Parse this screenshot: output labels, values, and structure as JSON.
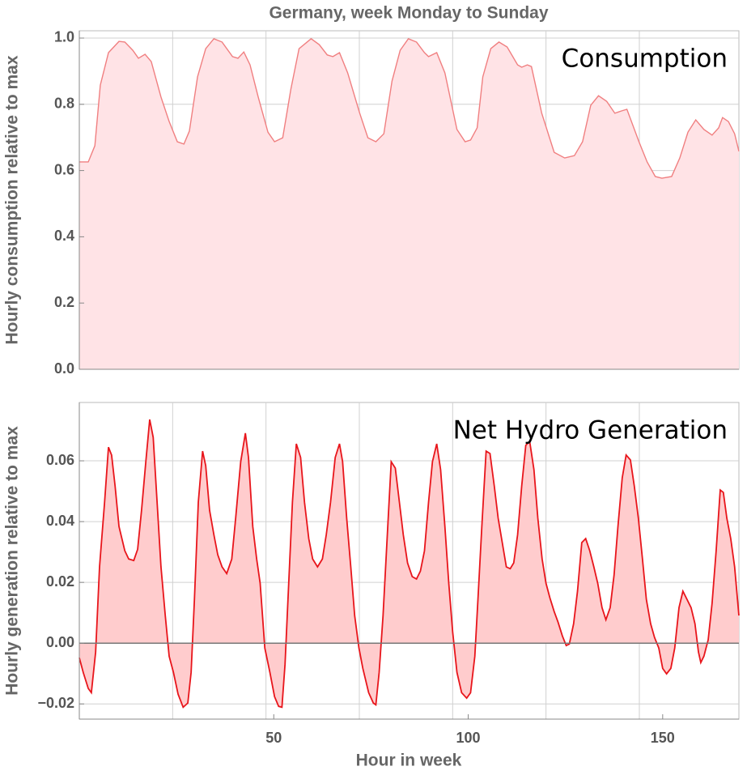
{
  "chart_data": [
    {
      "type": "area",
      "title": "Germany, week Monday to Sunday",
      "ylabel": "Hourly consumption relative to max",
      "annotation": "Consumption",
      "color": "#f07f80",
      "fill": "#ffe3e6",
      "grid": true,
      "xlim": [
        0,
        169.6
      ],
      "xgrid": [
        24,
        48,
        72,
        96,
        120,
        144
      ],
      "ylim": [
        0,
        1.022
      ],
      "yticks": [
        {
          "value": 0,
          "label": "0.0"
        },
        0.2,
        0.4,
        0.6,
        0.8,
        {
          "value": 1,
          "label": "1.0"
        }
      ],
      "x": [
        0,
        2.3,
        4.0,
        5.4,
        7.5,
        10.2,
        11.7,
        13.75,
        15.2,
        16.9,
        18.5,
        21.0,
        23.1,
        25.2,
        26.9,
        28.3,
        30.4,
        32.5,
        34.6,
        36.7,
        39.4,
        40.8,
        42.3,
        43.9,
        46.0,
        48.5,
        50.2,
        52.3,
        54.4,
        56.5,
        59.6,
        61.7,
        63.75,
        65.2,
        66.9,
        69.0,
        72.1,
        74.2,
        76.25,
        78.3,
        80.4,
        82.5,
        84.6,
        86.7,
        88.75,
        89.8,
        91.9,
        94.0,
        97.1,
        99.2,
        100.6,
        102.3,
        103.75,
        105.8,
        107.9,
        110.0,
        112.7,
        113.75,
        115.2,
        116.25,
        118.9,
        122.1,
        124.8,
        127.3,
        129.4,
        131.5,
        133.5,
        135.6,
        137.7,
        139.4,
        140.8,
        143.9,
        146.0,
        148.1,
        149.8,
        152.3,
        154.4,
        156.5,
        158.5,
        160.6,
        162.7,
        164.4,
        165.4,
        166.9,
        168.5,
        169.6
      ],
      "values": [
        0.626,
        0.626,
        0.675,
        0.858,
        0.956,
        0.99,
        0.988,
        0.963,
        0.939,
        0.951,
        0.929,
        0.822,
        0.748,
        0.687,
        0.68,
        0.719,
        0.883,
        0.968,
        0.998,
        0.988,
        0.944,
        0.939,
        0.958,
        0.919,
        0.822,
        0.716,
        0.687,
        0.699,
        0.846,
        0.968,
        0.998,
        0.98,
        0.949,
        0.944,
        0.956,
        0.895,
        0.773,
        0.699,
        0.687,
        0.711,
        0.87,
        0.963,
        0.998,
        0.988,
        0.956,
        0.944,
        0.956,
        0.895,
        0.724,
        0.687,
        0.692,
        0.729,
        0.883,
        0.968,
        0.988,
        0.973,
        0.919,
        0.912,
        0.919,
        0.914,
        0.773,
        0.655,
        0.638,
        0.645,
        0.687,
        0.797,
        0.826,
        0.809,
        0.773,
        0.78,
        0.785,
        0.687,
        0.626,
        0.582,
        0.577,
        0.582,
        0.638,
        0.716,
        0.753,
        0.724,
        0.707,
        0.729,
        0.76,
        0.748,
        0.711,
        0.658
      ]
    },
    {
      "type": "area",
      "xlabel": "Hour in week",
      "ylabel": "Hourly generation relative to max",
      "annotation": "Net Hydro Generation",
      "color": "#e8151b",
      "fill": "#ffcccd",
      "grid": true,
      "zero_line": true,
      "xlim": [
        0,
        169.6
      ],
      "xticks": [
        50,
        100,
        150
      ],
      "xgrid": [
        24,
        48,
        72,
        96,
        120,
        144
      ],
      "ylim": [
        -0.025,
        0.0792
      ],
      "yticks": [
        {
          "value": -0.02,
          "label": "−0.02"
        },
        {
          "value": 0,
          "label": "0.00"
        },
        0.02,
        0.04,
        0.06
      ],
      "x": [
        0,
        1.0,
        2.3,
        3.1,
        4.2,
        5.2,
        6.5,
        7.5,
        8.3,
        9.2,
        10.2,
        11.7,
        12.7,
        14.0,
        15.0,
        16.0,
        17.1,
        18.1,
        19.0,
        20.0,
        21.0,
        22.1,
        23.1,
        24.2,
        25.4,
        26.7,
        27.9,
        28.75,
        29.6,
        30.6,
        31.7,
        32.5,
        33.5,
        34.6,
        35.6,
        36.7,
        37.9,
        39.2,
        40.2,
        41.5,
        42.7,
        43.5,
        44.6,
        45.6,
        46.5,
        47.7,
        49.0,
        50.2,
        51.25,
        52.1,
        52.9,
        53.75,
        54.8,
        55.8,
        56.9,
        57.9,
        59.0,
        60.0,
        61.25,
        62.5,
        63.5,
        64.6,
        65.8,
        66.9,
        67.7,
        68.75,
        69.8,
        70.8,
        71.9,
        72.9,
        74.4,
        75.6,
        76.25,
        77.1,
        78.1,
        79.2,
        80.2,
        81.25,
        82.3,
        83.3,
        84.4,
        85.6,
        86.7,
        87.7,
        88.75,
        89.8,
        90.8,
        91.9,
        92.9,
        94.0,
        95.0,
        96.0,
        97.1,
        98.3,
        99.6,
        100.6,
        101.7,
        102.5,
        103.5,
        104.6,
        105.6,
        106.7,
        107.7,
        108.75,
        109.8,
        110.8,
        111.7,
        112.7,
        113.75,
        114.8,
        115.8,
        116.9,
        117.9,
        119.0,
        120.0,
        121.0,
        122.1,
        123.1,
        124.2,
        125.2,
        126.0,
        127.1,
        128.1,
        129.2,
        130.2,
        131.25,
        132.3,
        133.3,
        134.4,
        135.4,
        136.5,
        137.5,
        138.5,
        139.6,
        140.6,
        141.7,
        142.7,
        143.75,
        144.8,
        145.8,
        146.9,
        147.9,
        149.0,
        150.0,
        151.0,
        152.1,
        153.1,
        154.2,
        155.2,
        156.25,
        157.3,
        158.3,
        159.2,
        159.8,
        160.6,
        161.7,
        162.7,
        163.75,
        164.8,
        165.6,
        166.5,
        167.5,
        168.5,
        169.6
      ],
      "values": [
        -0.0048,
        -0.0096,
        -0.0149,
        -0.0163,
        -0.0029,
        0.0251,
        0.0464,
        0.0645,
        0.0619,
        0.0517,
        0.0384,
        0.0304,
        0.0277,
        0.0272,
        0.0309,
        0.0437,
        0.0597,
        0.0736,
        0.0677,
        0.0464,
        0.0251,
        0.0091,
        -0.0043,
        -0.0096,
        -0.0168,
        -0.0211,
        -0.0197,
        -0.0096,
        0.0144,
        0.0464,
        0.0632,
        0.0584,
        0.0437,
        0.0357,
        0.0291,
        0.0251,
        0.0229,
        0.0277,
        0.0411,
        0.0597,
        0.0691,
        0.0611,
        0.0384,
        0.0277,
        0.0197,
        -0.0016,
        -0.0096,
        -0.0176,
        -0.0208,
        -0.0211,
        -0.0069,
        0.0171,
        0.0464,
        0.0656,
        0.0611,
        0.0464,
        0.0344,
        0.0277,
        0.0251,
        0.0277,
        0.0357,
        0.0464,
        0.0611,
        0.0656,
        0.0597,
        0.0411,
        0.0251,
        0.0091,
        -0.0016,
        -0.0083,
        -0.0163,
        -0.0197,
        -0.0203,
        -0.0096,
        0.0091,
        0.0357,
        0.0597,
        0.0576,
        0.0464,
        0.0357,
        0.0264,
        0.0219,
        0.0211,
        0.0237,
        0.0304,
        0.0464,
        0.0597,
        0.0656,
        0.0571,
        0.0384,
        0.0197,
        0.0037,
        -0.0096,
        -0.0163,
        -0.0181,
        -0.0163,
        -0.0043,
        0.0144,
        0.0384,
        0.0632,
        0.0624,
        0.0517,
        0.0411,
        0.0331,
        0.0251,
        0.0245,
        0.0264,
        0.0357,
        0.0517,
        0.0651,
        0.0664,
        0.0571,
        0.0411,
        0.0277,
        0.0197,
        0.0149,
        0.0104,
        0.0069,
        0.0024,
        -0.0008,
        -0.0003,
        0.0064,
        0.0171,
        0.0331,
        0.0344,
        0.0304,
        0.0251,
        0.0197,
        0.0117,
        0.0077,
        0.0117,
        0.0224,
        0.0384,
        0.0544,
        0.0619,
        0.0603,
        0.0517,
        0.0411,
        0.0277,
        0.0144,
        0.0064,
        0.0019,
        -0.0016,
        -0.0083,
        -0.0101,
        -0.0083,
        -0.0016,
        0.0117,
        0.0171,
        0.0144,
        0.0117,
        0.0064,
        -0.0029,
        -0.0064,
        -0.0043,
        0.0011,
        0.0131,
        0.0304,
        0.0504,
        0.0496,
        0.0411,
        0.0344,
        0.0251,
        0.0091
      ]
    }
  ]
}
